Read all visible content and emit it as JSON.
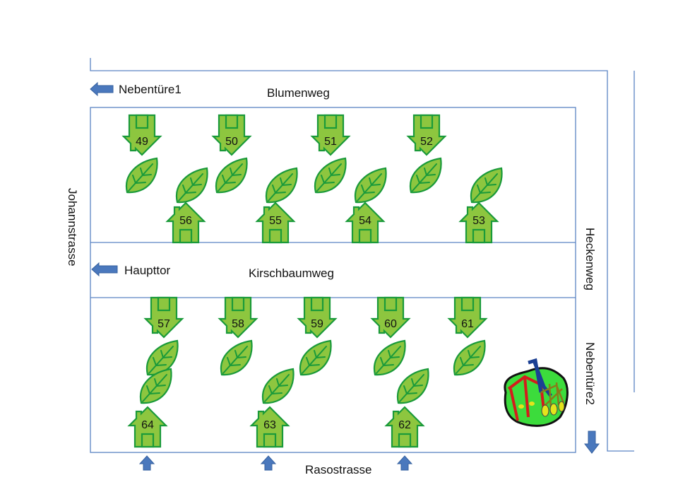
{
  "streets": {
    "top": "Blumenweg",
    "middle": "Kirschbaumweg",
    "left": "Johannstrasse",
    "right": "Heckenweg",
    "bottom": "Rasostrasse"
  },
  "entrances": {
    "side1": "Nebentüre1",
    "main": "Haupttor",
    "side2": "Nebentüre2"
  },
  "plots": {
    "top_row_upper": [
      "49",
      "50",
      "51",
      "52"
    ],
    "top_row_lower": [
      "56",
      "55",
      "54",
      "53"
    ],
    "bottom_row_upper": [
      "57",
      "58",
      "59",
      "60",
      "61"
    ],
    "bottom_row_lower": [
      "64",
      "63",
      "62"
    ]
  },
  "colors": {
    "plot_fill": "#8dc63f",
    "plot_stroke": "#1a9a3a",
    "line": "#5b84c4",
    "arrow": "#4a78bd"
  },
  "icons": {
    "plot": "house-icon",
    "garden": "leaf-icon",
    "playground": "playground-icon",
    "entrance": "arrow-icon"
  }
}
